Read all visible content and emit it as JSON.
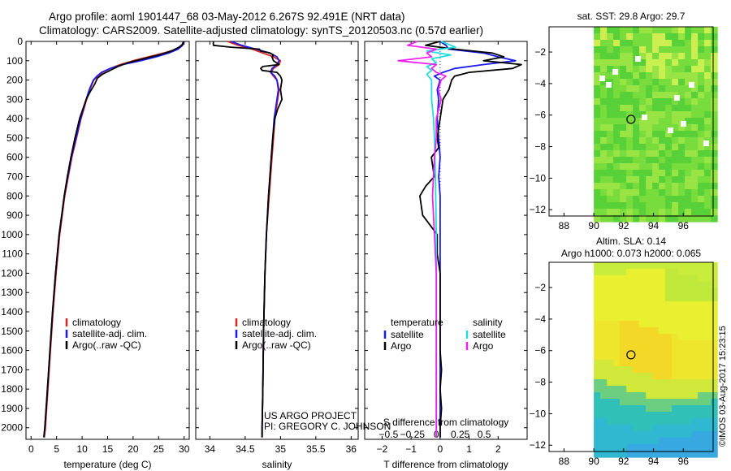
{
  "header": {
    "title_line1": "Argo profile: aoml 1901447_68 03-May-2012 6.267S 92.491E (NRT data)",
    "title_line2": "Climatology: CARS2009. Satellite-adjusted climatology: synTS_20120503.nc (0.57d earlier)"
  },
  "credit": {
    "project": "US ARGO PROJECT",
    "pi": "PI: GREGORY C. JOHNSON",
    "stamp": "©IMOS 03-Aug-2017 15:23:15"
  },
  "colors": {
    "climatology": "#dd2222",
    "satellite": "#1a1aee",
    "argo": "#000000",
    "salinity_sat": "#22dddd",
    "salinity_argo": "#ee22ee"
  },
  "chart_data": [
    {
      "type": "line",
      "id": "temperature",
      "xlabel": "temperature (deg C)",
      "xlim": [
        -1,
        31
      ],
      "xticks": [
        0,
        5,
        10,
        15,
        20,
        25,
        30
      ],
      "ylim": [
        2060,
        0
      ],
      "yticks": [
        0,
        100,
        200,
        300,
        400,
        500,
        600,
        700,
        800,
        900,
        1000,
        1100,
        1200,
        1300,
        1400,
        1500,
        1600,
        1700,
        1800,
        1900,
        2000
      ],
      "legend": [
        "climatology",
        "satellite-adj. clim.",
        "Argo(..raw -QC)"
      ],
      "series": [
        {
          "name": "climatology",
          "depth": [
            0,
            20,
            40,
            60,
            80,
            100,
            120,
            140,
            160,
            180,
            200,
            250,
            300,
            400,
            500,
            600,
            700,
            800,
            900,
            1000,
            1200,
            1400,
            1600,
            1800,
            2000,
            2050
          ],
          "values": [
            29.8,
            29.6,
            28.5,
            26.0,
            23.0,
            20.0,
            17.5,
            15.5,
            14.0,
            13.0,
            12.3,
            11.5,
            10.9,
            9.8,
            8.9,
            8.0,
            7.3,
            6.6,
            6.1,
            5.6,
            4.9,
            4.3,
            3.8,
            3.3,
            2.8,
            2.6
          ]
        },
        {
          "name": "satellite-adj. clim.",
          "depth": [
            0,
            20,
            40,
            60,
            80,
            100,
            120,
            140,
            160,
            180,
            200,
            250,
            300,
            400,
            500,
            600,
            700,
            800,
            900,
            1000,
            1200,
            1400,
            1600,
            1800,
            2000,
            2050
          ],
          "values": [
            30.0,
            29.7,
            28.8,
            27.0,
            24.5,
            21.5,
            18.0,
            15.5,
            13.8,
            12.9,
            12.2,
            11.4,
            10.8,
            9.7,
            8.8,
            7.9,
            7.2,
            6.5,
            6.0,
            5.5,
            4.8,
            4.2,
            3.7,
            3.2,
            2.7,
            2.5
          ]
        },
        {
          "name": "Argo(..raw -QC)",
          "depth": [
            0,
            15,
            30,
            50,
            70,
            90,
            110,
            130,
            150,
            170,
            190,
            220,
            260,
            300,
            400,
            500,
            600,
            700,
            800,
            900,
            1000,
            1200,
            1400,
            1600,
            1800,
            2000,
            2050
          ],
          "values": [
            29.9,
            29.7,
            29.0,
            27.5,
            25.0,
            22.0,
            19.0,
            17.0,
            15.5,
            14.0,
            13.0,
            12.5,
            11.6,
            10.8,
            9.5,
            8.6,
            7.8,
            7.1,
            6.5,
            6.0,
            5.5,
            4.8,
            4.2,
            3.7,
            3.2,
            2.7,
            2.5
          ]
        }
      ]
    },
    {
      "type": "line",
      "id": "salinity",
      "xlabel": "salinity",
      "xlim": [
        33.8,
        36.1
      ],
      "xticks": [
        34,
        34.5,
        35,
        35.5,
        36
      ],
      "ylim": [
        2060,
        0
      ],
      "legend": [
        "climatology",
        "satellite-adj. clim.",
        "Argo(..raw -QC)"
      ],
      "series": [
        {
          "name": "climatology",
          "depth": [
            0,
            20,
            40,
            60,
            80,
            100,
            120,
            140,
            160,
            180,
            200,
            250,
            300,
            400,
            500,
            600,
            800,
            1000,
            1200,
            1500,
            1800,
            2000,
            2050
          ],
          "values": [
            34.25,
            34.4,
            34.6,
            34.75,
            34.9,
            35.0,
            34.98,
            34.9,
            34.86,
            34.9,
            34.95,
            34.98,
            34.96,
            34.92,
            34.9,
            34.88,
            34.84,
            34.8,
            34.78,
            34.76,
            34.75,
            34.74,
            34.74
          ]
        },
        {
          "name": "satellite-adj. clim.",
          "depth": [
            0,
            20,
            40,
            60,
            80,
            100,
            120,
            140,
            160,
            180,
            200,
            250,
            300,
            400,
            500,
            600,
            800,
            1000,
            1200,
            1500,
            1800,
            2000,
            2050
          ],
          "values": [
            34.3,
            34.45,
            34.65,
            34.85,
            34.95,
            34.98,
            34.95,
            34.88,
            34.86,
            34.92,
            34.95,
            34.97,
            34.95,
            34.91,
            34.89,
            34.87,
            34.83,
            34.8,
            34.78,
            34.76,
            34.75,
            34.74,
            34.74
          ]
        },
        {
          "name": "Argo(..raw -QC)",
          "depth": [
            0,
            20,
            30,
            40,
            50,
            60,
            70,
            80,
            100,
            120,
            130,
            140,
            150,
            160,
            180,
            200,
            250,
            300,
            350,
            400,
            500,
            600,
            800,
            1000,
            1200,
            1500,
            1800,
            2000,
            2050
          ],
          "values": [
            34.05,
            34.05,
            34.3,
            34.7,
            34.72,
            34.85,
            34.9,
            34.88,
            34.9,
            34.98,
            34.75,
            34.72,
            34.74,
            34.95,
            35.0,
            35.02,
            35.0,
            35.02,
            34.96,
            34.92,
            34.89,
            34.87,
            34.83,
            34.8,
            34.78,
            34.76,
            34.75,
            34.74,
            34.74
          ]
        }
      ]
    },
    {
      "type": "line",
      "id": "differences",
      "xlabel": "T difference from climatology",
      "xlabel_top": "S difference from climatology",
      "xlim": [
        -2.6,
        3.0
      ],
      "xticks": [
        -2,
        -1,
        0,
        1,
        2
      ],
      "xlim_top": [
        -0.75,
        0.95
      ],
      "xticks_top": [
        -0.5,
        -0.25,
        0,
        0.25,
        0.5
      ],
      "ylim": [
        2060,
        0
      ],
      "legend_temperature": {
        "title": "temperature",
        "items": [
          "satellite",
          "Argo"
        ]
      },
      "legend_salinity": {
        "title": "salinity",
        "items": [
          "satellite",
          "Argo"
        ]
      },
      "series": [
        {
          "name": "temperature satellite",
          "depth": [
            0,
            20,
            40,
            60,
            80,
            100,
            120,
            140,
            160,
            180,
            200,
            250,
            300,
            400,
            500,
            600,
            700,
            800,
            900,
            1000,
            1200,
            1500,
            1800,
            2000,
            2050
          ],
          "values": [
            0.0,
            0.2,
            0.3,
            1.5,
            2.0,
            2.6,
            1.5,
            0.5,
            0.1,
            -0.2,
            0.0,
            -0.1,
            -0.05,
            -0.1,
            -0.05,
            0.0,
            -0.05,
            0.0,
            0.0,
            0.0,
            0.0,
            0.0,
            0.0,
            0.0,
            0.0
          ]
        },
        {
          "name": "temperature Argo",
          "depth": [
            0,
            20,
            40,
            60,
            80,
            100,
            120,
            140,
            160,
            180,
            200,
            250,
            300,
            400,
            500,
            550,
            600,
            700,
            750,
            800,
            900,
            1000,
            1100,
            1200,
            1400,
            1600,
            1700,
            1800,
            1900,
            2000,
            2050
          ],
          "values": [
            0.0,
            -0.5,
            0.5,
            1.8,
            2.2,
            1.5,
            2.8,
            2.5,
            1.0,
            0.5,
            0.4,
            0.3,
            0.1,
            0.0,
            -0.1,
            -0.05,
            -0.3,
            -0.2,
            -0.5,
            -0.7,
            -0.6,
            -0.1,
            -0.1,
            0.0,
            0.0,
            0.0,
            0.05,
            0.0,
            0.05,
            0.0,
            0.0
          ]
        },
        {
          "name": "salinity satellite",
          "depth": [
            0,
            30,
            50,
            70,
            90,
            110,
            130,
            150,
            170,
            200,
            250,
            300,
            400,
            500,
            700,
            1000,
            1500,
            2000,
            2050
          ],
          "values": [
            0.05,
            0.2,
            -0.1,
            0.15,
            -0.05,
            0.0,
            -0.1,
            -0.05,
            -0.1,
            -0.05,
            -0.05,
            -0.05,
            -0.03,
            -0.02,
            -0.01,
            0.0,
            0.0,
            0.0,
            0.0
          ]
        },
        {
          "name": "salinity Argo",
          "depth": [
            0,
            20,
            40,
            60,
            80,
            100,
            120,
            140,
            160,
            180,
            200,
            250,
            300,
            400,
            500,
            600,
            700,
            800,
            900,
            1000,
            1200,
            1500,
            1800,
            2000,
            2050
          ],
          "values": [
            -0.2,
            -0.3,
            0.0,
            -0.1,
            -0.05,
            -0.4,
            0.0,
            -0.05,
            0.0,
            0.1,
            0.05,
            0.02,
            0.05,
            0.0,
            0.0,
            -0.02,
            -0.03,
            -0.04,
            -0.03,
            -0.02,
            0.0,
            0.0,
            0.0,
            0.0,
            0.0
          ]
        }
      ]
    },
    {
      "type": "heatmap",
      "id": "sst-map",
      "title": "sat. SST: 29.8  Argo: 29.7",
      "xticks": [
        88,
        90,
        92,
        94,
        96
      ],
      "yticks": [
        -2,
        -4,
        -6,
        -8,
        -10,
        -12
      ],
      "xlim": [
        87,
        98
      ],
      "ylim": [
        -12.4,
        -0.4
      ],
      "marker": {
        "lon": 92.491,
        "lat": -6.267
      }
    },
    {
      "type": "heatmap",
      "id": "sla-map",
      "title": "Altim. SLA: 0.14",
      "subtitle": "Argo h1000: 0.073 h2000: 0.065",
      "xticks": [
        88,
        90,
        92,
        94,
        96
      ],
      "yticks": [
        -2,
        -4,
        -6,
        -8,
        -10,
        -12
      ],
      "xlim": [
        87,
        98
      ],
      "ylim": [
        -12.4,
        -0.4
      ],
      "marker": {
        "lon": 92.491,
        "lat": -6.267
      }
    }
  ]
}
